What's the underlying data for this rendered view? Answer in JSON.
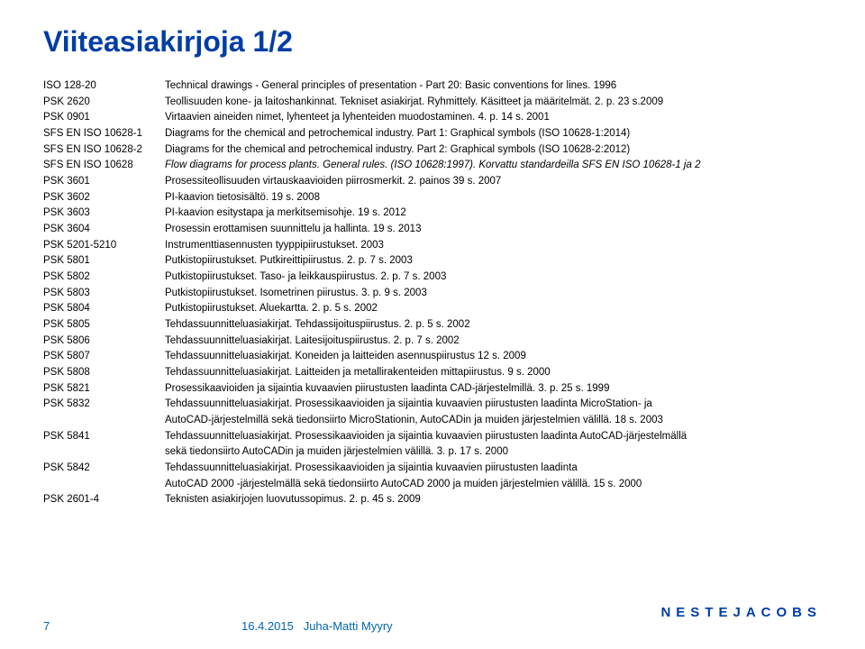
{
  "title": "Viiteasiakirjoja 1/2",
  "rows": [
    {
      "code": "ISO 128-20",
      "desc": "Technical drawings - General principles of presentation - Part 20: Basic conventions for lines. 1996"
    },
    {
      "code": "PSK 2620",
      "desc": "Teollisuuden kone- ja laitoshankinnat. Tekniset asiakirjat. Ryhmittely. Käsitteet ja määritelmät. 2. p. 23 s.2009"
    },
    {
      "code": "PSK 0901",
      "desc": "Virtaavien aineiden nimet, lyhenteet ja lyhenteiden muodostaminen. 4. p. 14 s. 2001"
    },
    {
      "code": "SFS EN ISO 10628-1",
      "desc": "Diagrams for the chemical and petrochemical industry. Part 1: Graphical symbols (ISO 10628-1:2014)"
    },
    {
      "code": "SFS EN ISO 10628-2",
      "desc": "Diagrams for the chemical and petrochemical industry. Part 2: Graphical symbols (ISO 10628-2:2012)"
    },
    {
      "code": "SFS EN ISO 10628",
      "desc": "",
      "italicPart": "Flow diagrams for process plants. General rules. (ISO 10628:1997). Korvattu standardeilla SFS EN ISO 10628-1 ja 2",
      "descAfter": ""
    },
    {
      "code": "PSK 3601",
      "desc": "Prosessiteollisuuden virtauskaavioiden piirrosmerkit. 2. painos 39 s. 2007"
    },
    {
      "code": "PSK 3602",
      "desc": "PI-kaavion tietosisältö. 19 s. 2008"
    },
    {
      "code": "PSK 3603",
      "desc": "PI-kaavion esitystapa ja merkitsemisohje. 19 s. 2012"
    },
    {
      "code": "PSK 3604",
      "desc": "Prosessin erottamisen suunnittelu ja hallinta. 19 s. 2013"
    },
    {
      "code": "PSK 5201-5210",
      "desc": "Instrumenttiasennusten tyyppipiirustukset. 2003"
    },
    {
      "code": "PSK 5801",
      "desc": "Putkistopiirustukset. Putkireittipiirustus. 2. p. 7 s. 2003"
    },
    {
      "code": "PSK 5802",
      "desc": "Putkistopiirustukset. Taso- ja leikkauspiirustus. 2. p. 7 s. 2003"
    },
    {
      "code": "PSK 5803",
      "desc": "Putkistopiirustukset. Isometrinen piirustus. 3. p. 9 s. 2003"
    },
    {
      "code": "PSK 5804",
      "desc": "Putkistopiirustukset. Aluekartta. 2. p. 5 s. 2002"
    },
    {
      "code": "PSK 5805",
      "desc": "Tehdassuunnitteluasiakirjat. Tehdassijoituspiirustus. 2. p. 5 s. 2002"
    },
    {
      "code": "PSK 5806",
      "desc": "Tehdassuunnitteluasiakirjat. Laitesijoituspiirustus. 2. p. 7 s. 2002"
    },
    {
      "code": "PSK 5807",
      "desc": "Tehdassuunnitteluasiakirjat. Koneiden ja laitteiden asennuspiirustus 12 s. 2009"
    },
    {
      "code": "PSK 5808",
      "desc": "Tehdassuunnitteluasiakirjat. Laitteiden ja metallirakenteiden mittapiirustus. 9 s. 2000"
    },
    {
      "code": "PSK 5821",
      "desc": "Prosessikaavioiden ja sijaintia kuvaavien piirustusten laadinta CAD-järjestelmillä. 3. p. 25 s. 1999"
    },
    {
      "code": "PSK 5832",
      "desc": "Tehdassuunnitteluasiakirjat. Prosessikaavioiden ja sijaintia kuvaavien piirustusten laadinta MicroStation- ja"
    },
    {
      "code": "",
      "desc": "AutoCAD-järjestelmillä sekä tiedonsiirto MicroStationin, AutoCADin ja muiden järjestelmien välillä. 18 s. 2003"
    },
    {
      "code": "PSK 5841",
      "desc": "Tehdassuunnitteluasiakirjat. Prosessikaavioiden ja sijaintia kuvaavien piirustusten laadinta AutoCAD-järjestelmällä"
    },
    {
      "code": "",
      "desc": "sekä tiedonsiirto AutoCADin ja muiden järjestelmien välillä. 3. p. 17 s. 2000"
    },
    {
      "code": "PSK 5842",
      "desc": "Tehdassuunnitteluasiakirjat. Prosessikaavioiden ja sijaintia kuvaavien piirustusten laadinta"
    },
    {
      "code": "",
      "desc": "AutoCAD 2000 -järjestelmällä sekä tiedonsiirto AutoCAD 2000 ja muiden järjestelmien välillä. 15 s. 2000"
    },
    {
      "code": "PSK 2601-4",
      "desc": "Teknisten asiakirjojen luovutussopimus. 2. p. 45 s. 2009"
    }
  ],
  "footer": {
    "slideNum": "7",
    "date": "16.4.2015",
    "author": "Juha-Matti Myyry",
    "logo": "NESTEJACOBS"
  },
  "colors": {
    "titleColor": "#003da5",
    "footerColor": "#0066b3",
    "textColor": "#000000",
    "background": "#ffffff"
  }
}
